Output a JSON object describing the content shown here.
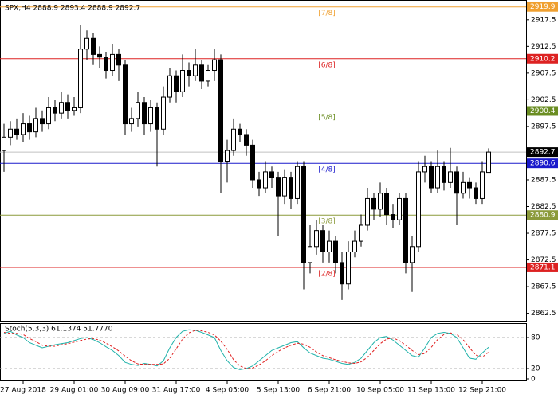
{
  "chart_data": {
    "type": "candlestick",
    "title": "SPX,H4  2888.9 2893.4 2888.9 2892.7",
    "categories": [
      null,
      null,
      null,
      "27 Aug 2018",
      null,
      null,
      null,
      null,
      null,
      null,
      null,
      "29 Aug 01:00",
      null,
      null,
      null,
      null,
      null,
      null,
      null,
      "30 Aug 09:00",
      null,
      null,
      null,
      null,
      null,
      null,
      null,
      "31 Aug 17:00",
      null,
      null,
      null,
      null,
      null,
      null,
      null,
      "4 Sep 05:00",
      null,
      null,
      null,
      null,
      null,
      null,
      null,
      "5 Sep 13:00",
      null,
      null,
      null,
      null,
      null,
      null,
      null,
      "6 Sep 21:00",
      null,
      null,
      null,
      null,
      null,
      null,
      null,
      "10 Sep 05:00",
      null,
      null,
      null,
      null,
      null,
      null,
      null,
      "11 Sep 13:00",
      null,
      null,
      null,
      null,
      null,
      null,
      null,
      "12 Sep 21:00",
      null
    ],
    "open": [
      2893,
      2895.5,
      2897,
      2896,
      2898,
      2896.5,
      2899,
      2898,
      2901,
      2900,
      2902,
      2900.5,
      2901,
      2912,
      2914,
      2911,
      2910.5,
      2908,
      2911,
      2909,
      2898,
      2899,
      2902,
      2898,
      2901,
      2897,
      2903,
      2907,
      2904,
      2908,
      2907,
      2909,
      2906,
      2908,
      2910,
      2891,
      2893,
      2897,
      2896,
      2894,
      2887.5,
      2886,
      2889,
      2888,
      2884.5,
      2888,
      2884,
      2890,
      2872,
      2875,
      2878,
      2874,
      2876,
      2872,
      2868,
      2874,
      2876,
      2879,
      2884,
      2882,
      2885,
      2881,
      2880,
      2884,
      2872,
      2875,
      2889,
      2890,
      2886,
      2890,
      2887,
      2889,
      2885,
      2887,
      2886,
      2884,
      2888.9
    ],
    "high": [
      2898,
      2898.5,
      2899,
      2900,
      2899.5,
      2901,
      2900.5,
      2903,
      2902.5,
      2904,
      2903.5,
      2903,
      2916.5,
      2915.5,
      2915,
      2912.5,
      2911.5,
      2913,
      2912,
      2910,
      2901,
      2904,
      2903,
      2902.5,
      2902,
      2905,
      2908.5,
      2908,
      2911,
      2909.5,
      2912,
      2910,
      2909,
      2912,
      2911,
      2895,
      2899,
      2898,
      2897,
      2895,
      2889,
      2891,
      2890,
      2889,
      2889.5,
      2889,
      2891,
      2891,
      2879,
      2880,
      2879,
      2878,
      2877,
      2874,
      2876,
      2878,
      2881,
      2886,
      2885,
      2887,
      2886,
      2883,
      2885,
      2885,
      2877,
      2891,
      2892,
      2891,
      2893,
      2891,
      2893.5,
      2890,
      2889,
      2888,
      2887,
      2891,
      2893.4
    ],
    "low": [
      2889,
      2894,
      2895,
      2894.5,
      2895,
      2895.5,
      2896.5,
      2897,
      2898.5,
      2899,
      2899,
      2899.5,
      2900,
      2910,
      2909,
      2908.5,
      2906.5,
      2907,
      2906,
      2896,
      2896.5,
      2897.5,
      2896,
      2896.5,
      2890,
      2896,
      2902,
      2902,
      2903,
      2905,
      2906,
      2904.5,
      2905,
      2906,
      2885,
      2887,
      2892,
      2894.5,
      2892,
      2886,
      2884.5,
      2885,
      2886,
      2877,
      2883,
      2882,
      2883,
      2867,
      2870,
      2873.5,
      2872,
      2872,
      2870,
      2865,
      2867,
      2873,
      2875,
      2878,
      2880,
      2880.5,
      2879,
      2878.5,
      2879,
      2870,
      2866.5,
      2874,
      2887,
      2885,
      2885,
      2885.5,
      2886,
      2879,
      2884,
      2884,
      2883,
      2883,
      2888.9
    ],
    "close": [
      2895.5,
      2897,
      2896,
      2898,
      2896.5,
      2899,
      2898,
      2901,
      2900,
      2902,
      2900.5,
      2901,
      2912,
      2914,
      2911,
      2910.5,
      2908,
      2911,
      2909,
      2898,
      2899,
      2902,
      2898,
      2901,
      2897,
      2903,
      2907,
      2904,
      2908,
      2907,
      2909,
      2906,
      2908,
      2910,
      2891,
      2893,
      2897,
      2896,
      2894,
      2887.5,
      2886,
      2889,
      2888,
      2884.5,
      2888,
      2884,
      2890,
      2872,
      2875,
      2878,
      2874,
      2876,
      2872,
      2868,
      2874,
      2876,
      2879,
      2884,
      2882,
      2885,
      2881,
      2880,
      2884,
      2872,
      2875,
      2889,
      2890,
      2886,
      2890,
      2887,
      2889,
      2885,
      2887,
      2886,
      2884,
      2889,
      2892.7
    ],
    "up_color": "#ffffff",
    "down_color": "#000000",
    "ylim": [
      2861.1,
      2921.2
    ],
    "yticks": [
      2862.5,
      2867.5,
      2872.5,
      2877.5,
      2882.5,
      2887.5,
      2897.5,
      2902.5,
      2907.5,
      2912.5,
      2917.5
    ],
    "levels": [
      {
        "name": "[7/8]",
        "value": 2919.9,
        "color": "#f0a030"
      },
      {
        "name": "[6/8]",
        "value": 2910.2,
        "color": "#dd2222"
      },
      {
        "name": "[5/8]",
        "value": 2900.4,
        "color": "#6b8e23"
      },
      {
        "name": "[4/8]",
        "value": 2890.6,
        "color": "#1a1acc"
      },
      {
        "name": "[3/8]",
        "value": 2880.9,
        "color": "#8b9a3a"
      },
      {
        "name": "[2/8]",
        "value": 2871.1,
        "color": "#dd2222"
      }
    ],
    "current_price": {
      "value": 2892.7,
      "color": "#000000"
    },
    "indicator": {
      "title": "Stoch(5,3,3) 61.1374 51.7770",
      "ylim": [
        0,
        100
      ],
      "yticks": [
        0,
        20,
        80
      ],
      "series": [
        {
          "color": "#20b2aa",
          "dash": false,
          "values": [
            88,
            92,
            85,
            80,
            70,
            65,
            60,
            63,
            66,
            68,
            70,
            74,
            78,
            80,
            76,
            70,
            62,
            55,
            45,
            32,
            28,
            26,
            30,
            28,
            25,
            35,
            60,
            80,
            92,
            95,
            94,
            90,
            85,
            80,
            55,
            35,
            22,
            18,
            20,
            25,
            35,
            45,
            55,
            60,
            65,
            70,
            72,
            60,
            50,
            45,
            40,
            38,
            34,
            30,
            28,
            32,
            40,
            55,
            70,
            80,
            82,
            75,
            65,
            55,
            45,
            42,
            60,
            80,
            88,
            90,
            88,
            80,
            60,
            40,
            38,
            50,
            61.1374
          ]
        },
        {
          "color": "#e02020",
          "dash": true,
          "values": [
            90,
            88,
            88,
            86,
            78,
            72,
            65,
            63,
            63,
            66,
            68,
            71,
            74,
            77,
            78,
            75,
            69,
            62,
            54,
            44,
            35,
            29,
            28,
            28,
            28,
            29,
            40,
            58,
            77,
            89,
            94,
            93,
            90,
            85,
            73,
            57,
            37,
            25,
            20,
            21,
            27,
            35,
            45,
            53,
            60,
            65,
            69,
            67,
            61,
            52,
            45,
            41,
            37,
            34,
            31,
            30,
            33,
            42,
            55,
            68,
            77,
            79,
            74,
            65,
            55,
            47,
            49,
            61,
            76,
            86,
            89,
            86,
            76,
            60,
            46,
            42,
            51.777
          ]
        }
      ]
    }
  }
}
